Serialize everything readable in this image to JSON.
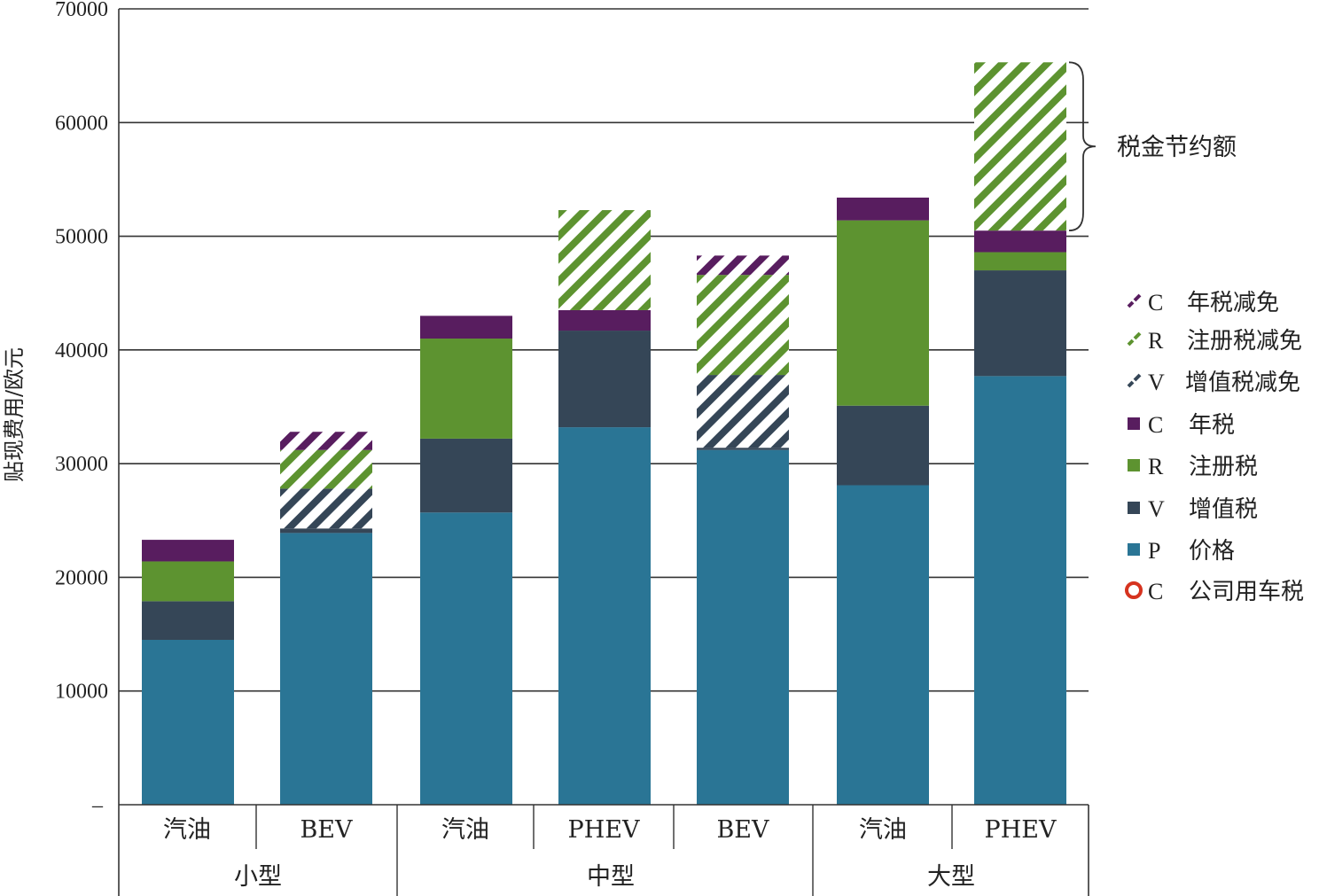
{
  "chart_data": {
    "type": "bar",
    "stacked": true,
    "ylabel": "贴现费用/欧元",
    "ylim": [
      0,
      70000
    ],
    "yticks": [
      "–",
      "10000",
      "20000",
      "30000",
      "40000",
      "50000",
      "60000",
      "70000"
    ],
    "grid": true,
    "groups": [
      {
        "name": "小型",
        "categories": [
          "汽油",
          "BEV"
        ]
      },
      {
        "name": "中型",
        "categories": [
          "汽油",
          "PHEV",
          "BEV"
        ]
      },
      {
        "name": "大型",
        "categories": [
          "汽油",
          "PHEV"
        ]
      }
    ],
    "categories": [
      "汽油",
      "BEV",
      "汽油",
      "PHEV",
      "BEV",
      "汽油",
      "PHEV"
    ],
    "series": [
      {
        "key": "P",
        "name": "价格",
        "color": "#2a7595",
        "pattern": "solid",
        "values": [
          14500,
          23900,
          25700,
          33200,
          31200,
          28100,
          37700
        ]
      },
      {
        "key": "V",
        "name": "增值税",
        "color": "#354657",
        "pattern": "solid",
        "values": [
          3400,
          400,
          6500,
          8500,
          200,
          7000,
          9300
        ]
      },
      {
        "key": "R",
        "name": "注册税",
        "color": "#5d9330",
        "pattern": "solid",
        "values": [
          3500,
          0,
          8800,
          0,
          0,
          16300,
          1600
        ]
      },
      {
        "key": "C",
        "name": "年税",
        "color": "#581d5f",
        "pattern": "solid",
        "values": [
          1900,
          0,
          2000,
          1800,
          0,
          2000,
          1900
        ]
      },
      {
        "key": "V",
        "name": "增值税减免",
        "color": "#354657",
        "pattern": "hatch",
        "values": [
          0,
          3500,
          0,
          0,
          6400,
          0,
          0
        ]
      },
      {
        "key": "R",
        "name": "注册税减免",
        "color": "#5d9330",
        "pattern": "hatch",
        "values": [
          0,
          3400,
          0,
          8800,
          8800,
          0,
          14800
        ]
      },
      {
        "key": "C",
        "name": "年税减免",
        "color": "#581d5f",
        "pattern": "hatch",
        "values": [
          0,
          1600,
          0,
          0,
          1700,
          0,
          0
        ]
      }
    ],
    "legend": {
      "position": "right",
      "items": [
        {
          "key": "C",
          "name": "年税减免",
          "marker": "hatch",
          "color": "#581d5f"
        },
        {
          "key": "R",
          "name": "注册税减免",
          "marker": "hatch",
          "color": "#5d9330"
        },
        {
          "key": "V",
          "name": "增值税减免",
          "marker": "hatch",
          "color": "#354657"
        },
        {
          "key": "C",
          "name": "年税",
          "marker": "square",
          "color": "#581d5f"
        },
        {
          "key": "R",
          "name": "注册税",
          "marker": "square",
          "color": "#5d9330"
        },
        {
          "key": "V",
          "name": "增值税",
          "marker": "square",
          "color": "#354657"
        },
        {
          "key": "P",
          "name": "价格",
          "marker": "square",
          "color": "#2a7595"
        },
        {
          "key": "C",
          "name": "公司用车税",
          "marker": "ring",
          "color": "#d6331f"
        }
      ]
    },
    "annotations": [
      {
        "text": "税金节约额",
        "target_bar": 6,
        "from_value": 50500,
        "to_value": 65300
      }
    ]
  }
}
